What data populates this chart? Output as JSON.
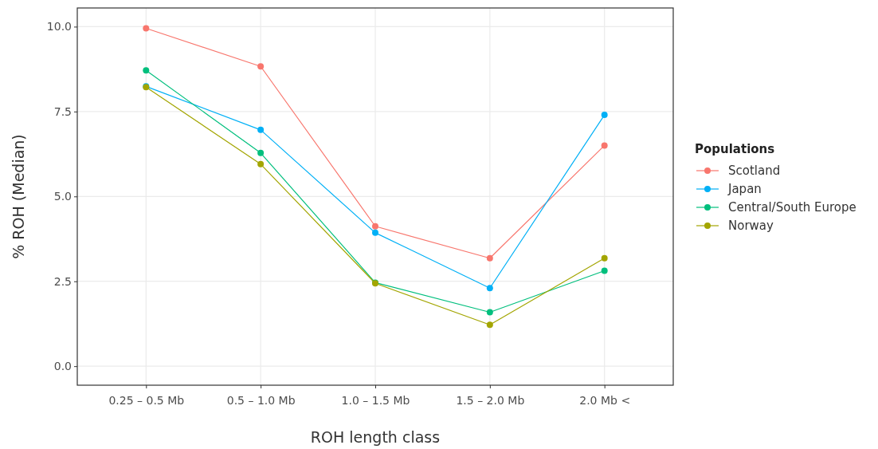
{
  "chart_data": {
    "type": "line",
    "xlabel": "ROH length class",
    "ylabel": "% ROH (Median)",
    "legend_title": "Populations",
    "categories": [
      "0.25 – 0.5 Mb",
      "0.5 – 1.0 Mb",
      "1.0 – 1.5 Mb",
      "1.5 – 2.0 Mb",
      "2.0 Mb <"
    ],
    "series": [
      {
        "name": "Scotland",
        "color": "#f8766d",
        "values": [
          9.95,
          8.83,
          4.12,
          3.18,
          6.5
        ]
      },
      {
        "name": "Japan",
        "color": "#00b0f6",
        "values": [
          8.24,
          6.96,
          3.93,
          2.3,
          7.4
        ]
      },
      {
        "name": "Central/South Europe",
        "color": "#00bf7d",
        "values": [
          8.71,
          6.28,
          2.46,
          1.59,
          2.81
        ]
      },
      {
        "name": "Norway",
        "color": "#a3a500",
        "values": [
          8.22,
          5.95,
          2.44,
          1.22,
          3.18
        ]
      }
    ],
    "ylim": [
      -0.56,
      10.55
    ],
    "yticks": [
      {
        "value": 0,
        "label": "0.0"
      },
      {
        "value": 2.5,
        "label": "2.5"
      },
      {
        "value": 5,
        "label": "5.0"
      },
      {
        "value": 7.5,
        "label": "7.5"
      },
      {
        "value": 10,
        "label": "10.0"
      }
    ],
    "grid": true,
    "legend": "right",
    "marker": "circle",
    "line_style": "solid"
  }
}
